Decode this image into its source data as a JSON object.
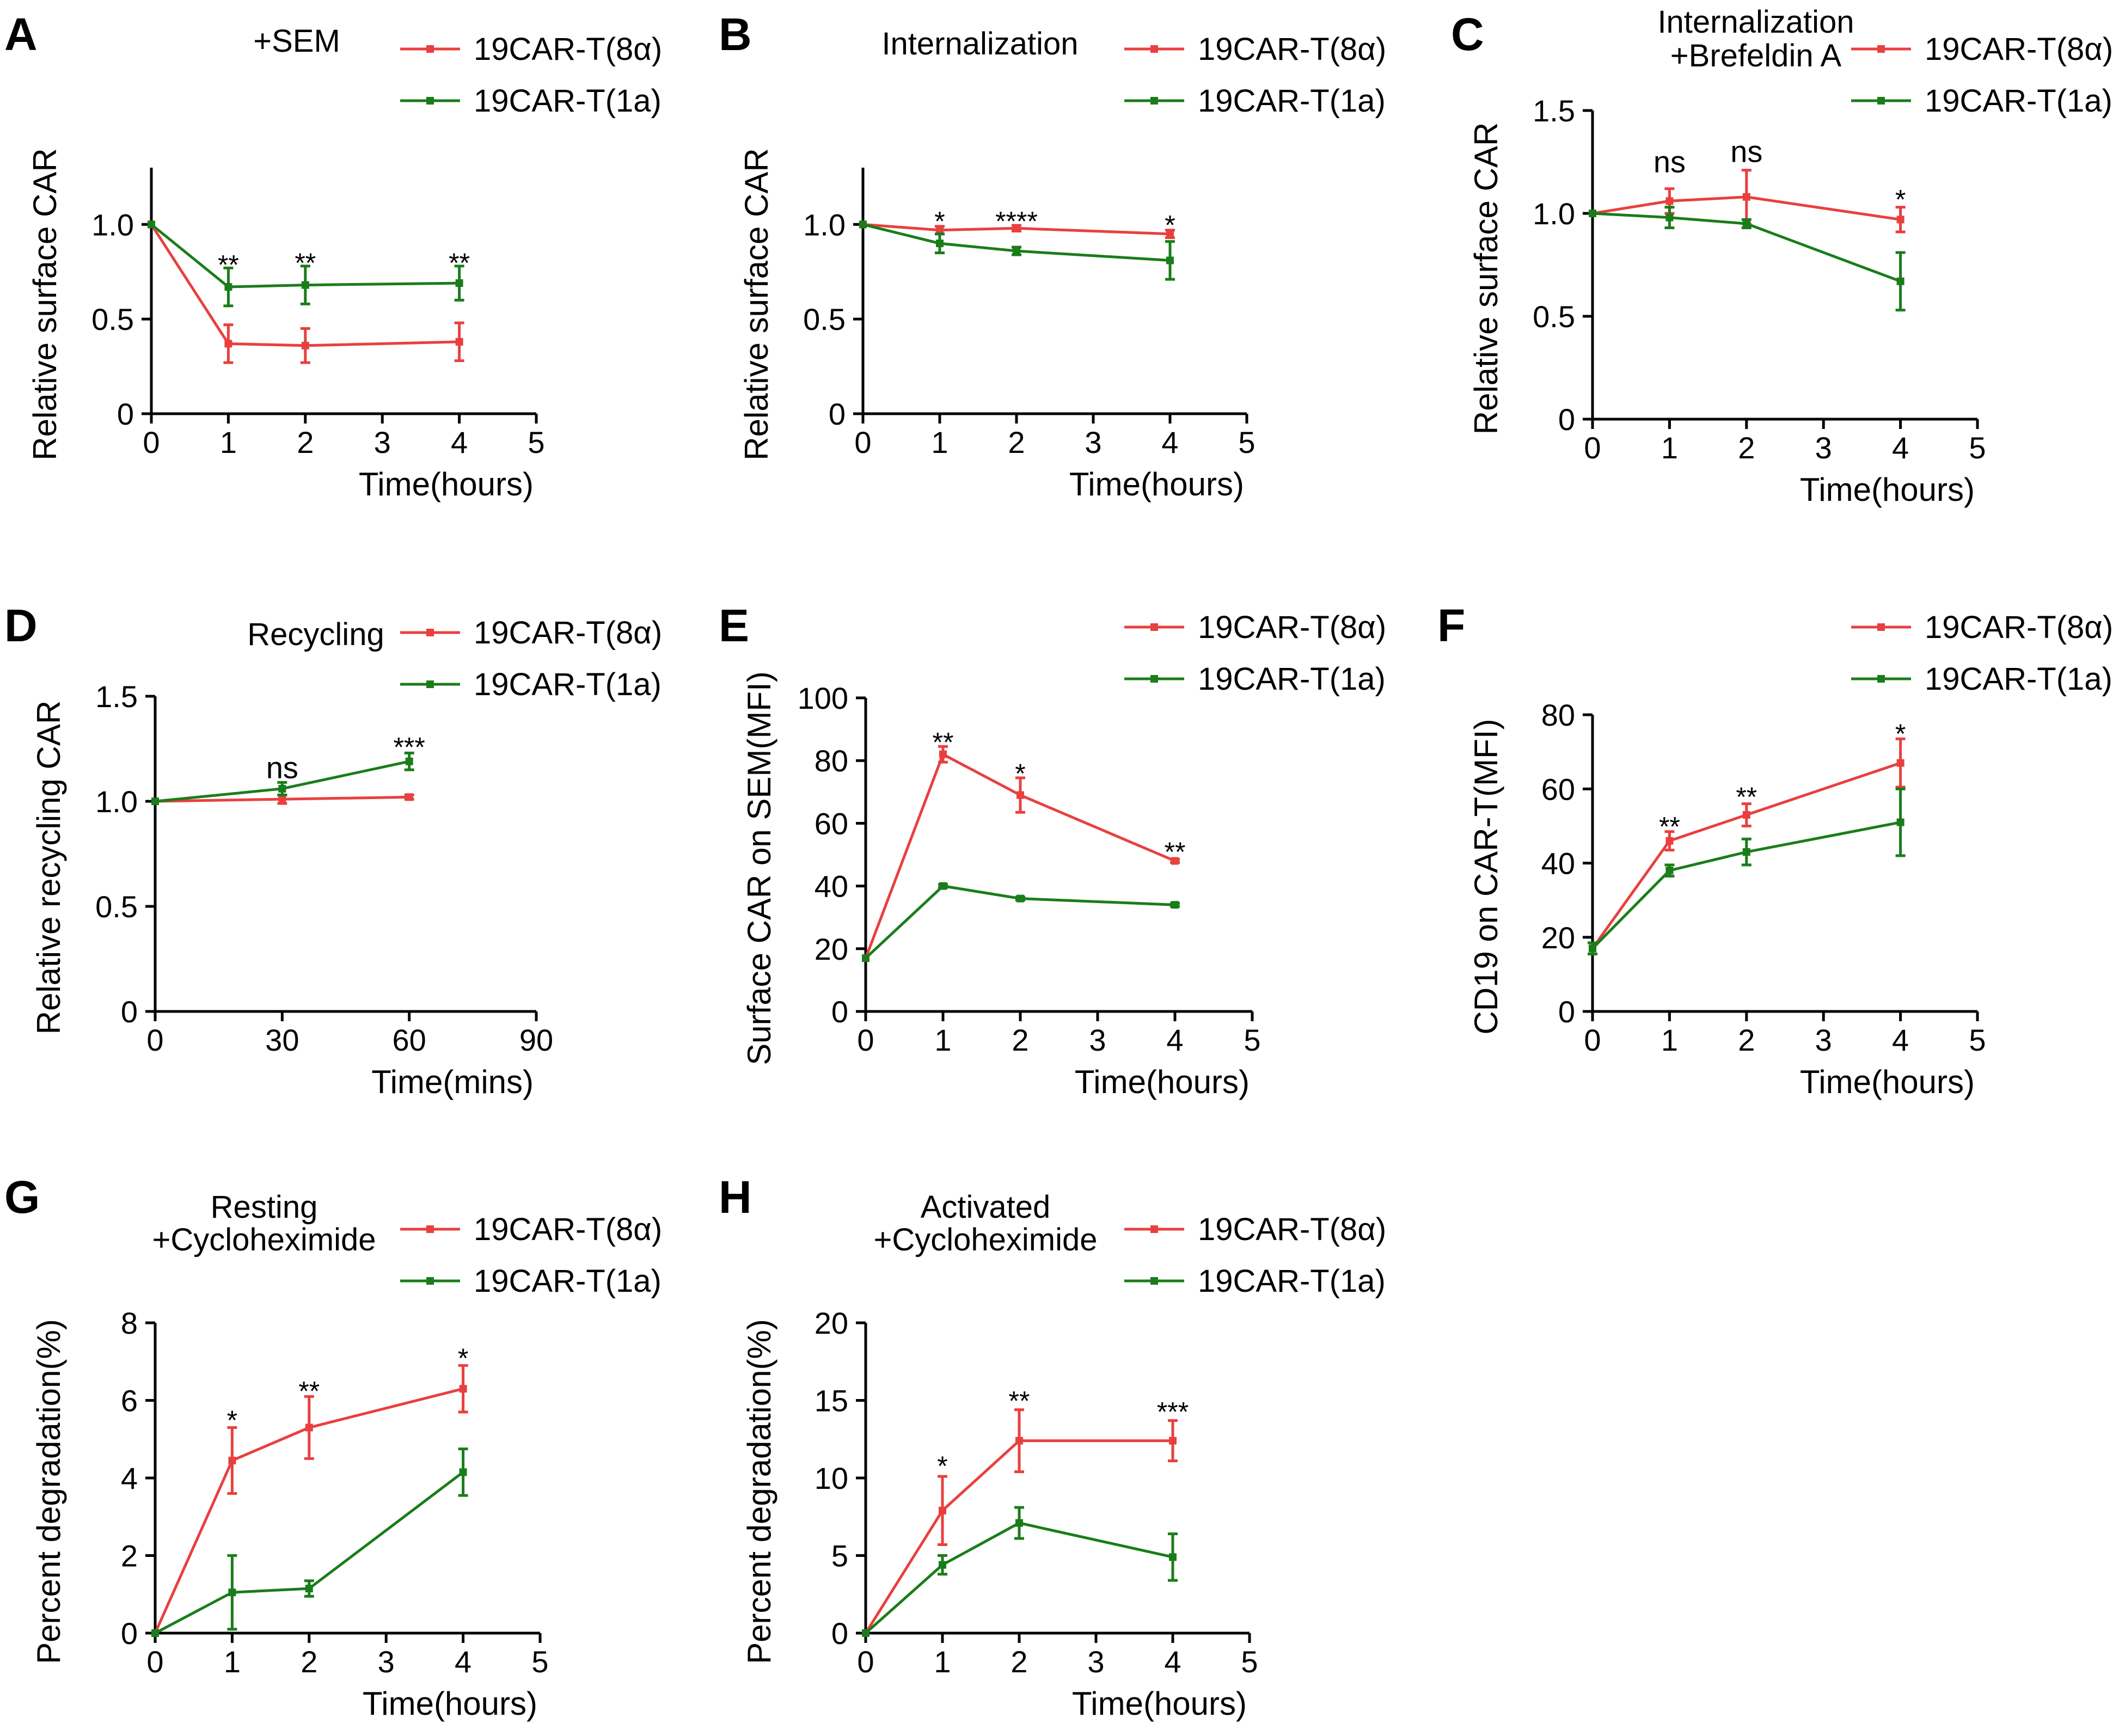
{
  "series_colors": {
    "8a": "#e8403f",
    "1a": "#1a7d1a"
  },
  "legend_labels": {
    "8a": "19CAR-T(8α)",
    "1a": "19CAR-T(1a)"
  },
  "chart_data": [
    {
      "panel": "A",
      "type": "line",
      "title": [
        "+SEM"
      ],
      "ylabel": "Relative surface CAR",
      "xlabel": "Time(hours)",
      "xlim": [
        0,
        5
      ],
      "ylim": [
        0,
        1.3
      ],
      "xticks": [
        0,
        1,
        2,
        3,
        4,
        5
      ],
      "xtick_labels": [
        "0",
        "1",
        "2",
        "3",
        "4",
        "5"
      ],
      "yticks": [
        0,
        0.5,
        1.0
      ],
      "ytick_labels": [
        "0",
        "0.5",
        "1.0"
      ],
      "x": [
        0,
        1,
        2,
        4
      ],
      "series": [
        {
          "key": "8a",
          "name": "19CAR-T(8α)",
          "values": [
            1.0,
            0.37,
            0.36,
            0.38
          ],
          "err": [
            0,
            0.1,
            0.09,
            0.1
          ]
        },
        {
          "key": "1a",
          "name": "19CAR-T(1a)",
          "values": [
            1.0,
            0.67,
            0.68,
            0.69
          ],
          "err": [
            0,
            0.1,
            0.1,
            0.09
          ]
        }
      ],
      "annotations": [
        {
          "x": 1,
          "y": 0.79,
          "text": "**"
        },
        {
          "x": 2,
          "y": 0.8,
          "text": "**"
        },
        {
          "x": 4,
          "y": 0.8,
          "text": "**"
        }
      ]
    },
    {
      "panel": "B",
      "type": "line",
      "title": [
        "Internalization"
      ],
      "ylabel": "Relative surface CAR",
      "xlabel": "Time(hours)",
      "xlim": [
        0,
        5
      ],
      "ylim": [
        0,
        1.3
      ],
      "xticks": [
        0,
        1,
        2,
        3,
        4,
        5
      ],
      "xtick_labels": [
        "0",
        "1",
        "2",
        "3",
        "4",
        "5"
      ],
      "yticks": [
        0,
        0.5,
        1.0
      ],
      "ytick_labels": [
        "0",
        "0.5",
        "1.0"
      ],
      "x": [
        0,
        1,
        2,
        4
      ],
      "series": [
        {
          "key": "8a",
          "name": "19CAR-T(8α)",
          "values": [
            1.0,
            0.97,
            0.98,
            0.95
          ],
          "err": [
            0,
            0.02,
            0.015,
            0.02
          ]
        },
        {
          "key": "1a",
          "name": "19CAR-T(1a)",
          "values": [
            1.0,
            0.9,
            0.86,
            0.81
          ],
          "err": [
            0,
            0.05,
            0.02,
            0.1
          ]
        }
      ],
      "annotations": [
        {
          "x": 1,
          "y": 1.02,
          "text": "*"
        },
        {
          "x": 2,
          "y": 1.02,
          "text": "****"
        },
        {
          "x": 4,
          "y": 1.0,
          "text": "*"
        }
      ]
    },
    {
      "panel": "C",
      "type": "line",
      "title": [
        "Internalization",
        "+Brefeldin A"
      ],
      "ylabel": "Relative surface CAR",
      "xlabel": "Time(hours)",
      "xlim": [
        0,
        5
      ],
      "ylim": [
        0,
        1.5
      ],
      "xticks": [
        0,
        1,
        2,
        3,
        4,
        5
      ],
      "xtick_labels": [
        "0",
        "1",
        "2",
        "3",
        "4",
        "5"
      ],
      "yticks": [
        0,
        0.5,
        1.0,
        1.5
      ],
      "ytick_labels": [
        "0",
        "0.5",
        "1.0",
        "1.5"
      ],
      "x": [
        0,
        1,
        2,
        4
      ],
      "series": [
        {
          "key": "8a",
          "name": "19CAR-T(8α)",
          "values": [
            1.0,
            1.06,
            1.08,
            0.97
          ],
          "err": [
            0,
            0.06,
            0.13,
            0.06
          ]
        },
        {
          "key": "1a",
          "name": "19CAR-T(1a)",
          "values": [
            1.0,
            0.98,
            0.95,
            0.67
          ],
          "err": [
            0,
            0.05,
            0.02,
            0.14
          ]
        }
      ],
      "annotations": [
        {
          "x": 1,
          "y": 1.2,
          "text": "ns",
          "ns": true
        },
        {
          "x": 2,
          "y": 1.25,
          "text": "ns",
          "ns": true
        },
        {
          "x": 4,
          "y": 1.07,
          "text": "*"
        }
      ]
    },
    {
      "panel": "D",
      "type": "line",
      "title": [
        "Recycling"
      ],
      "ylabel": "Relative recycling CAR",
      "xlabel": "Time(mins)",
      "xlim": [
        0,
        90
      ],
      "ylim": [
        0,
        1.5
      ],
      "xticks": [
        0,
        30,
        60,
        90
      ],
      "xtick_labels": [
        "0",
        "30",
        "60",
        "90"
      ],
      "yticks": [
        0,
        0.5,
        1.0,
        1.5
      ],
      "ytick_labels": [
        "0",
        "0.5",
        "1.0",
        "1.5"
      ],
      "x": [
        0,
        30,
        60
      ],
      "series": [
        {
          "key": "8a",
          "name": "19CAR-T(8α)",
          "values": [
            1.0,
            1.01,
            1.02
          ],
          "err": [
            0,
            0.02,
            0.01
          ]
        },
        {
          "key": "1a",
          "name": "19CAR-T(1a)",
          "values": [
            1.0,
            1.06,
            1.19
          ],
          "err": [
            0,
            0.03,
            0.04
          ]
        }
      ],
      "annotations": [
        {
          "x": 30,
          "y": 1.11,
          "text": "ns",
          "ns": true
        },
        {
          "x": 60,
          "y": 1.26,
          "text": "***"
        }
      ]
    },
    {
      "panel": "E",
      "type": "line",
      "title": [],
      "ylabel": "Surface CAR on SEM(MFI)",
      "xlabel": "Time(hours)",
      "xlim": [
        0,
        5
      ],
      "ylim": [
        0,
        100
      ],
      "xticks": [
        0,
        1,
        2,
        3,
        4,
        5
      ],
      "xtick_labels": [
        "0",
        "1",
        "2",
        "3",
        "4",
        "5"
      ],
      "yticks": [
        0,
        20,
        40,
        60,
        80,
        100
      ],
      "ytick_labels": [
        "0",
        "20",
        "40",
        "60",
        "80",
        "100"
      ],
      "x": [
        0,
        1,
        2,
        4
      ],
      "series": [
        {
          "key": "8a",
          "name": "19CAR-T(8α)",
          "values": [
            17,
            82,
            69,
            48
          ],
          "err": [
            0,
            2.5,
            5.5,
            0.5
          ]
        },
        {
          "key": "1a",
          "name": "19CAR-T(1a)",
          "values": [
            17,
            40,
            36,
            34
          ],
          "err": [
            0,
            0.5,
            0.5,
            0.5
          ]
        }
      ],
      "annotations": [
        {
          "x": 1,
          "y": 86,
          "text": "**"
        },
        {
          "x": 2,
          "y": 76,
          "text": "*"
        },
        {
          "x": 4,
          "y": 51,
          "text": "**"
        }
      ]
    },
    {
      "panel": "F",
      "type": "line",
      "title": [],
      "ylabel": "CD19 on CAR-T(MFI)",
      "xlabel": "Time(hours)",
      "xlim": [
        0,
        5
      ],
      "ylim": [
        0,
        80
      ],
      "xticks": [
        0,
        1,
        2,
        3,
        4,
        5
      ],
      "xtick_labels": [
        "0",
        "1",
        "2",
        "3",
        "4",
        "5"
      ],
      "yticks": [
        0,
        20,
        40,
        60,
        80
      ],
      "ytick_labels": [
        "0",
        "20",
        "40",
        "60",
        "80"
      ],
      "x": [
        0,
        1,
        2,
        4
      ],
      "series": [
        {
          "key": "8a",
          "name": "19CAR-T(8α)",
          "values": [
            17,
            46,
            53,
            67
          ],
          "err": [
            1.5,
            2.5,
            3,
            6.5
          ]
        },
        {
          "key": "1a",
          "name": "19CAR-T(1a)",
          "values": [
            17,
            38,
            43,
            51
          ],
          "err": [
            1.5,
            1.5,
            3.5,
            9
          ]
        }
      ],
      "annotations": [
        {
          "x": 1,
          "y": 50,
          "text": "**"
        },
        {
          "x": 2,
          "y": 58,
          "text": "**"
        },
        {
          "x": 4,
          "y": 75,
          "text": "*"
        }
      ]
    },
    {
      "panel": "G",
      "type": "line",
      "title": [
        "Resting",
        "+Cycloheximide"
      ],
      "ylabel": "Percent degradation(%)",
      "xlabel": "Time(hours)",
      "xlim": [
        0,
        5
      ],
      "ylim": [
        0,
        8
      ],
      "xticks": [
        0,
        1,
        2,
        3,
        4,
        5
      ],
      "xtick_labels": [
        "0",
        "1",
        "2",
        "3",
        "4",
        "5"
      ],
      "yticks": [
        0,
        2,
        4,
        6,
        8
      ],
      "ytick_labels": [
        "0",
        "2",
        "4",
        "6",
        "8"
      ],
      "x": [
        0,
        1,
        2,
        4
      ],
      "series": [
        {
          "key": "8a",
          "name": "19CAR-T(8α)",
          "values": [
            0,
            4.45,
            5.3,
            6.3
          ],
          "err": [
            0,
            0.85,
            0.8,
            0.6
          ]
        },
        {
          "key": "1a",
          "name": "19CAR-T(1a)",
          "values": [
            0,
            1.05,
            1.15,
            4.15
          ],
          "err": [
            0,
            0.95,
            0.2,
            0.6
          ]
        }
      ],
      "annotations": [
        {
          "x": 1,
          "y": 5.5,
          "text": "*"
        },
        {
          "x": 2,
          "y": 6.25,
          "text": "**"
        },
        {
          "x": 4,
          "y": 7.1,
          "text": "*"
        }
      ]
    },
    {
      "panel": "H",
      "type": "line",
      "title": [
        "Activated",
        "+Cycloheximide"
      ],
      "ylabel": "Percent degradation(%)",
      "xlabel": "Time(hours)",
      "xlim": [
        0,
        5
      ],
      "ylim": [
        0,
        20
      ],
      "xticks": [
        0,
        1,
        2,
        3,
        4,
        5
      ],
      "xtick_labels": [
        "0",
        "1",
        "2",
        "3",
        "4",
        "5"
      ],
      "yticks": [
        0,
        5,
        10,
        15,
        20
      ],
      "ytick_labels": [
        "0",
        "5",
        "10",
        "15",
        "20"
      ],
      "x": [
        0,
        1,
        2,
        4
      ],
      "series": [
        {
          "key": "8a",
          "name": "19CAR-T(8α)",
          "values": [
            0,
            7.9,
            12.4,
            12.4
          ],
          "err": [
            0,
            2.2,
            2.0,
            1.3
          ]
        },
        {
          "key": "1a",
          "name": "19CAR-T(1a)",
          "values": [
            0,
            4.4,
            7.1,
            4.9
          ],
          "err": [
            0,
            0.6,
            1.0,
            1.5
          ]
        }
      ],
      "annotations": [
        {
          "x": 1,
          "y": 10.8,
          "text": "*"
        },
        {
          "x": 2,
          "y": 15.0,
          "text": "**"
        },
        {
          "x": 4,
          "y": 14.3,
          "text": "***"
        }
      ]
    }
  ]
}
